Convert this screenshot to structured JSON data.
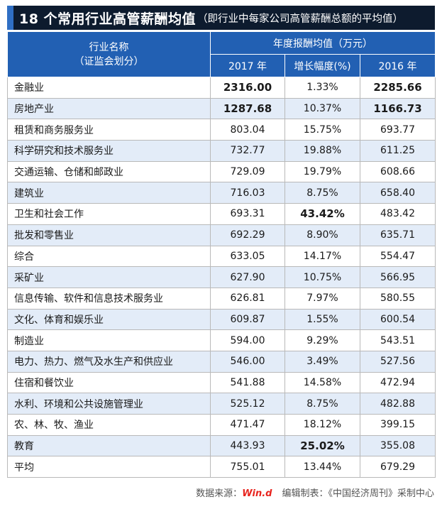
{
  "title": {
    "main": "18 个常用行业高管薪酬均值",
    "sub": "（即行业中每家公司高管薪酬总额的平均值）"
  },
  "header": {
    "name_line1": "行业名称",
    "name_line2": "（证监会划分）",
    "group": "年度报酬均值（万元）",
    "col_2017": "2017 年",
    "col_growth": "增长幅度(%)",
    "col_2016": "2016 年"
  },
  "rows": [
    {
      "name": "金融业",
      "y2017": "2316.00",
      "growth": "1.33%",
      "y2016": "2285.66"
    },
    {
      "name": "房地产业",
      "y2017": "1287.68",
      "growth": "10.37%",
      "y2016": "1166.73"
    },
    {
      "name": "租赁和商务服务业",
      "y2017": "803.04",
      "growth": "15.75%",
      "y2016": "693.77"
    },
    {
      "name": "科学研究和技术服务业",
      "y2017": "732.77",
      "growth": "19.88%",
      "y2016": "611.25"
    },
    {
      "name": "交通运输、仓储和邮政业",
      "y2017": "729.09",
      "growth": "19.79%",
      "y2016": "608.66"
    },
    {
      "name": "建筑业",
      "y2017": "716.03",
      "growth": "8.75%",
      "y2016": "658.40"
    },
    {
      "name": "卫生和社会工作",
      "y2017": "693.31",
      "growth": "43.42%",
      "y2016": "483.42"
    },
    {
      "name": "批发和零售业",
      "y2017": "692.29",
      "growth": "8.90%",
      "y2016": "635.71"
    },
    {
      "name": "综合",
      "y2017": "633.05",
      "growth": "14.17%",
      "y2016": "554.47"
    },
    {
      "name": "采矿业",
      "y2017": "627.90",
      "growth": "10.75%",
      "y2016": "566.95"
    },
    {
      "name": "信息传输、软件和信息技术服务业",
      "y2017": "626.81",
      "growth": "7.97%",
      "y2016": "580.55"
    },
    {
      "name": "文化、体育和娱乐业",
      "y2017": "609.87",
      "growth": "1.55%",
      "y2016": "600.54"
    },
    {
      "name": "制造业",
      "y2017": "594.00",
      "growth": "9.29%",
      "y2016": "543.51"
    },
    {
      "name": "电力、热力、燃气及水生产和供应业",
      "y2017": "546.00",
      "growth": "3.49%",
      "y2016": "527.56"
    },
    {
      "name": "住宿和餐饮业",
      "y2017": "541.88",
      "growth": "14.58%",
      "y2016": "472.94"
    },
    {
      "name": "水利、环境和公共设施管理业",
      "y2017": "525.12",
      "growth": "8.75%",
      "y2016": "482.88"
    },
    {
      "name": "农、林、牧、渔业",
      "y2017": "471.47",
      "growth": "18.12%",
      "y2016": "399.15"
    },
    {
      "name": "教育",
      "y2017": "443.93",
      "growth": "25.02%",
      "y2016": "355.08"
    },
    {
      "name": "平均",
      "y2017": "755.01",
      "growth": "13.44%",
      "y2016": "679.29"
    }
  ],
  "footer": {
    "source_label": "数据来源：",
    "brand": "Win.d",
    "credit": "编辑制表：《中国经济周刊》采制中心"
  },
  "colors": {
    "title_bg": "#0d1b2e",
    "header_bg": "#2260b3",
    "stripe": "#e3ecf8",
    "brand": "#e8251f"
  }
}
